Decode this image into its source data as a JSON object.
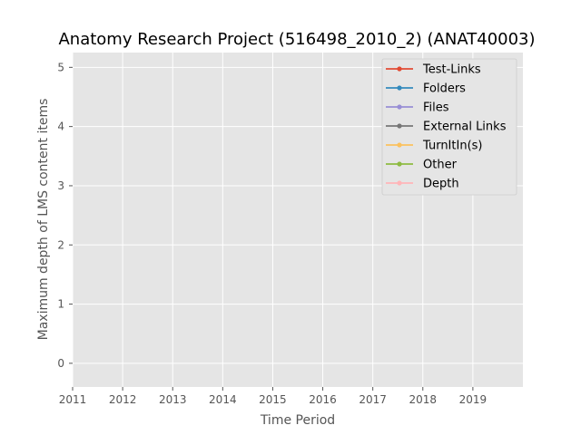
{
  "chart_data": {
    "type": "line",
    "title": "Anatomy Research Project (516498_2010_2) (ANAT40003)",
    "xlabel": "Time Period",
    "ylabel": "Maximum depth of LMS content items",
    "xlim": [
      2011,
      2020
    ],
    "ylim": [
      -0.4,
      5.25
    ],
    "x_ticks": [
      "2011",
      "2012",
      "2013",
      "2014",
      "2015",
      "2016",
      "2017",
      "2018",
      "2019"
    ],
    "y_ticks": [
      "0",
      "1",
      "2",
      "3",
      "4",
      "5"
    ],
    "grid": true,
    "legend_position": "top-right",
    "series": [
      {
        "name": "Test-Links",
        "color": "#E24A33",
        "values": []
      },
      {
        "name": "Folders",
        "color": "#348ABD",
        "values": []
      },
      {
        "name": "Files",
        "color": "#988ED5",
        "values": []
      },
      {
        "name": "External Links",
        "color": "#777777",
        "values": []
      },
      {
        "name": "TurnItIn(s)",
        "color": "#FBC15E",
        "values": []
      },
      {
        "name": "Other",
        "color": "#8EBA42",
        "values": []
      },
      {
        "name": "Depth",
        "color": "#FFB5B8",
        "values": []
      }
    ]
  }
}
